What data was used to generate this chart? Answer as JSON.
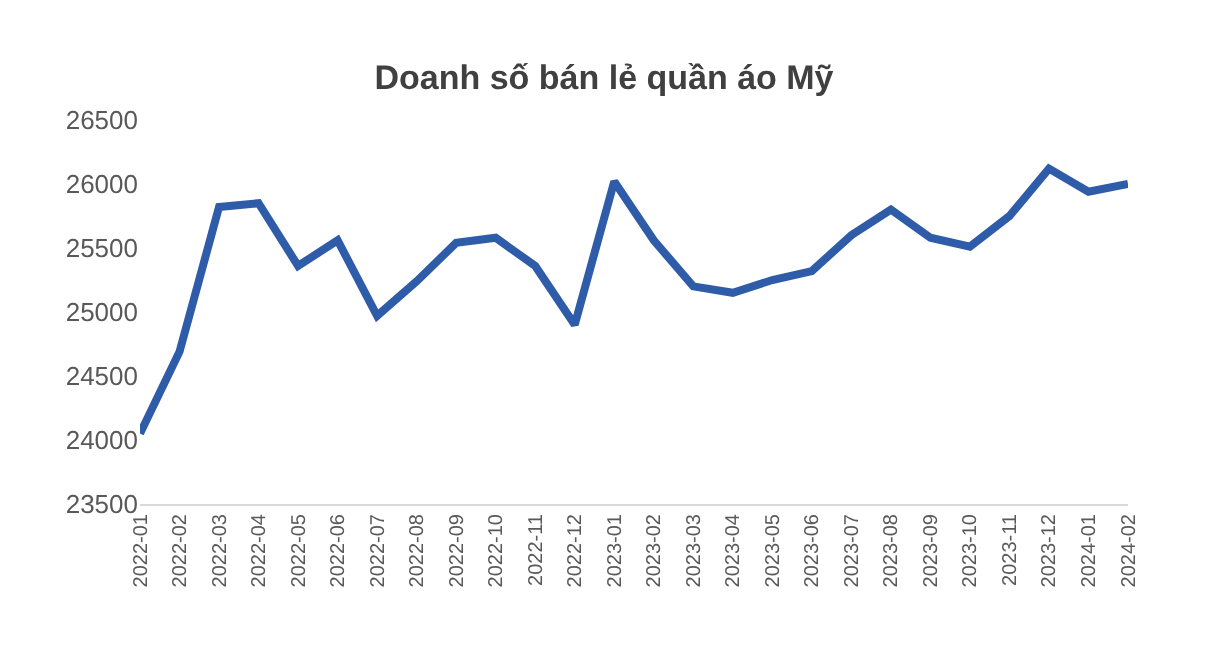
{
  "chart_data": {
    "type": "line",
    "title": "Doanh số bán lẻ quần áo Mỹ",
    "categories": [
      "2022-01",
      "2022-02",
      "2022-03",
      "2022-04",
      "2022-05",
      "2022-06",
      "2022-07",
      "2022-08",
      "2022-09",
      "2022-10",
      "2022-11",
      "2022-12",
      "2023-01",
      "2023-02",
      "2023-03",
      "2023-04",
      "2023-05",
      "2023-06",
      "2023-07",
      "2023-08",
      "2023-09",
      "2023-10",
      "2023-11",
      "2023-12",
      "2024-01",
      "2024-02"
    ],
    "series": [
      {
        "color": "#2f5ca8",
        "values": [
          24050,
          24690,
          25820,
          25850,
          25360,
          25560,
          24970,
          25240,
          25540,
          25580,
          25360,
          24900,
          26020,
          25560,
          25200,
          25150,
          25250,
          25320,
          25600,
          25800,
          25580,
          25510,
          25750,
          26120,
          25940,
          26000
        ]
      }
    ],
    "ylim": [
      23500,
      26500
    ],
    "yticks": [
      23500,
      24000,
      24500,
      25000,
      25500,
      26000,
      26500
    ],
    "grid": false,
    "legend": false,
    "marker": "none",
    "line_style": "solid"
  }
}
